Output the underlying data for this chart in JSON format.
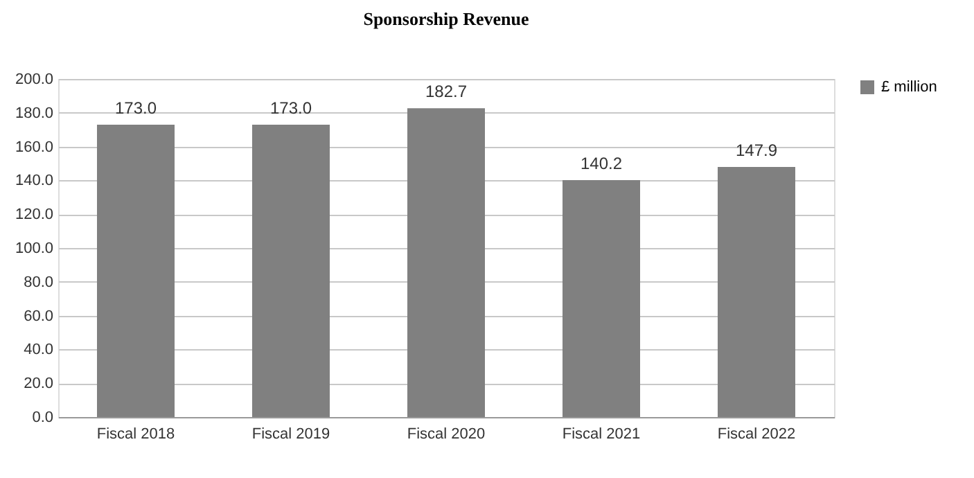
{
  "chart_data": {
    "type": "bar",
    "title": "Sponsorship Revenue",
    "categories": [
      "Fiscal 2018",
      "Fiscal 2019",
      "Fiscal 2020",
      "Fiscal 2021",
      "Fiscal 2022"
    ],
    "series": [
      {
        "name": "£ million",
        "color": "#808080",
        "values": [
          173.0,
          173.0,
          182.7,
          140.2,
          147.9
        ]
      }
    ],
    "ylim": [
      0,
      200
    ],
    "yticks": [
      {
        "value": 0,
        "label": "0.0"
      },
      {
        "value": 20,
        "label": "20.0"
      },
      {
        "value": 40,
        "label": "40.0"
      },
      {
        "value": 60,
        "label": "60.0"
      },
      {
        "value": 80,
        "label": "80.0"
      },
      {
        "value": 100,
        "label": "100.0"
      },
      {
        "value": 120,
        "label": "120.0"
      },
      {
        "value": 140,
        "label": "140.0"
      },
      {
        "value": 160,
        "label": "160.0"
      },
      {
        "value": 180,
        "label": "180.0"
      },
      {
        "value": 200,
        "label": "200.0"
      }
    ],
    "value_labels": [
      "173.0",
      "173.0",
      "182.7",
      "140.2",
      "147.9"
    ],
    "grid": "y",
    "legend": "right"
  }
}
